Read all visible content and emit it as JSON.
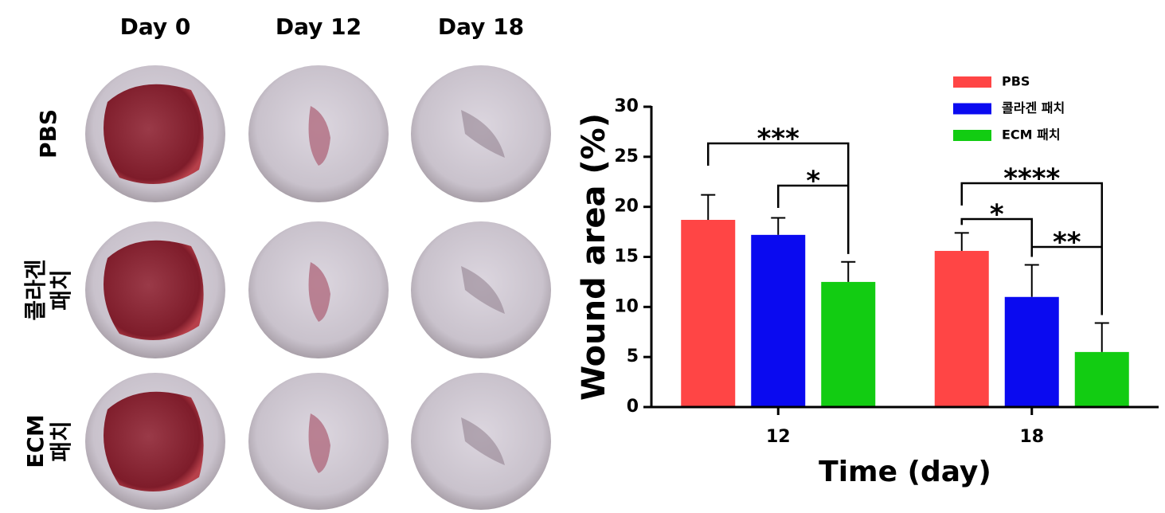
{
  "photo_panel": {
    "columns": [
      "Day 0",
      "Day 12",
      "Day 18"
    ],
    "rows": [
      [
        "PBS"
      ],
      [
        "콜라겐",
        "패치"
      ],
      [
        "ECM",
        "패치"
      ]
    ]
  },
  "chart_data": {
    "type": "bar",
    "xlabel": "Time (day)",
    "ylabel": "Wound area (%)",
    "categories": [
      "12",
      "18"
    ],
    "series": [
      {
        "name": "PBS",
        "color": "#ff4545",
        "values": [
          18.7,
          15.6
        ],
        "errors": [
          2.5,
          1.8
        ]
      },
      {
        "name": "콜라겐 패치",
        "color": "#0a0af0",
        "values": [
          17.2,
          11.0
        ],
        "errors": [
          1.7,
          3.2
        ]
      },
      {
        "name": "ECM 패치",
        "color": "#12cc12",
        "values": [
          12.5,
          5.5
        ],
        "errors": [
          2.0,
          2.9
        ]
      }
    ],
    "ylim": [
      0,
      30
    ],
    "yticks": [
      0,
      5,
      10,
      15,
      20,
      25,
      30
    ],
    "legend": "upper-right",
    "annotations": [
      {
        "label": "***",
        "category": "12",
        "between": [
          "PBS",
          "ECM 패치"
        ]
      },
      {
        "label": "*",
        "category": "12",
        "between": [
          "콜라겐 패치",
          "ECM 패치"
        ]
      },
      {
        "label": "****",
        "category": "18",
        "between": [
          "PBS",
          "ECM 패치"
        ]
      },
      {
        "label": "*",
        "category": "18",
        "between": [
          "PBS",
          "콜라겐 패치"
        ]
      },
      {
        "label": "**",
        "category": "18",
        "between": [
          "콜라겐 패치",
          "ECM 패치"
        ]
      }
    ]
  }
}
